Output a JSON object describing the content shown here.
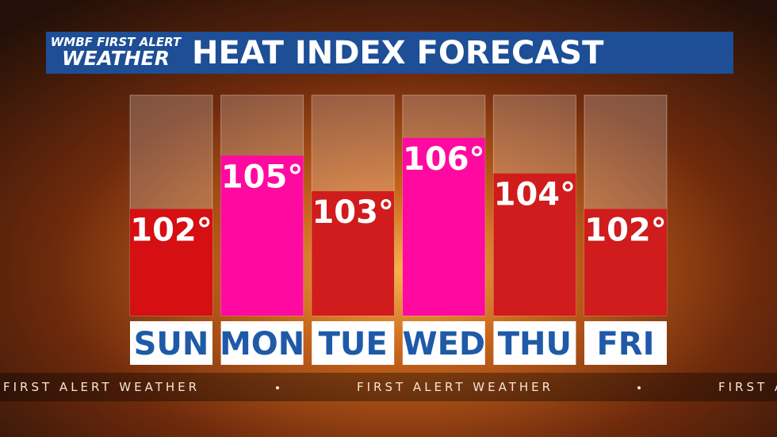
{
  "header": {
    "logo_top": "WMBF FIRST ALERT",
    "logo_bottom": "WEATHER"
  },
  "ticker": "FIRST ALERT WEATHER",
  "chart_data": {
    "type": "bar",
    "title": "HEAT INDEX FORECAST",
    "categories": [
      "SUN",
      "MON",
      "TUE",
      "WED",
      "THU",
      "FRI"
    ],
    "values": [
      102,
      105,
      103,
      106,
      104,
      102
    ],
    "value_labels": [
      "102°",
      "105°",
      "103°",
      "106°",
      "104°",
      "102°"
    ],
    "colors": [
      "#d50f12",
      "#ff0aa0",
      "#d01c1c",
      "#ff0aa0",
      "#d01c1c",
      "#d01c1c"
    ],
    "ylim": [
      96,
      108
    ]
  }
}
